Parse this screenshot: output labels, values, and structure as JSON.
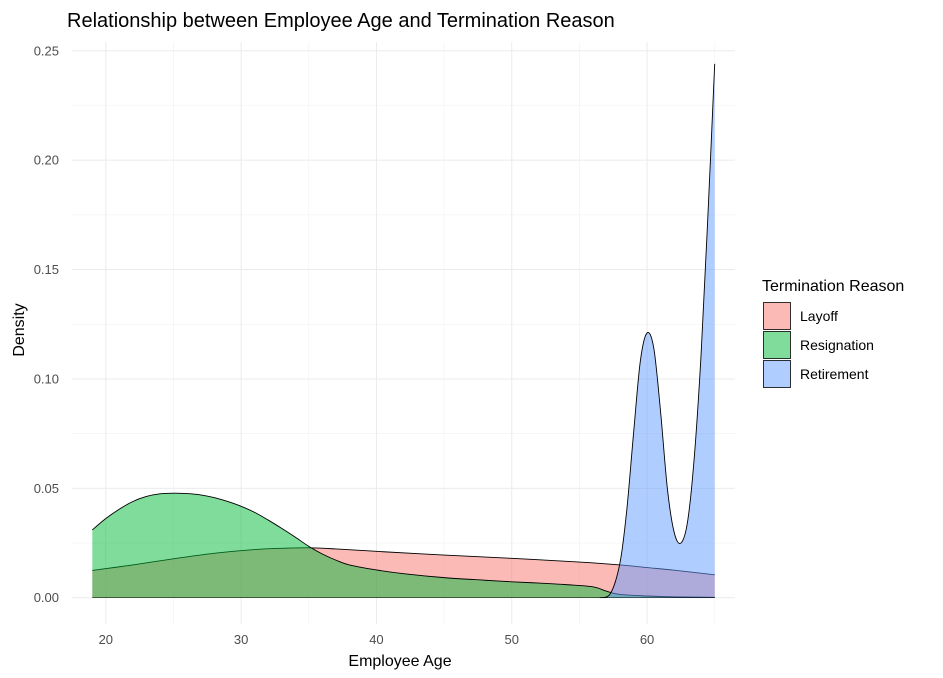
{
  "chart_data": {
    "type": "area",
    "subtype": "density",
    "title": "Relationship between Employee Age and Termination Reason",
    "xlabel": "Employee Age",
    "ylabel": "Density",
    "xlim": [
      17.5,
      66.5
    ],
    "ylim": [
      -0.012,
      0.254
    ],
    "x_ticks": [
      20,
      30,
      40,
      50,
      60
    ],
    "x_tick_labels": [
      "20",
      "30",
      "40",
      "50",
      "60"
    ],
    "y_ticks": [
      0,
      0.05,
      0.1,
      0.15,
      0.2,
      0.25
    ],
    "y_tick_labels": [
      "0.00",
      "0.05",
      "0.10",
      "0.15",
      "0.20",
      "0.25"
    ],
    "grid": true,
    "legend": {
      "title": "Termination Reason",
      "position": "right"
    },
    "fill_opacity": 0.5,
    "series": [
      {
        "name": "Layoff",
        "color": "#F8766D",
        "points": [
          [
            19,
            0.0125
          ],
          [
            22,
            0.015
          ],
          [
            25,
            0.0178
          ],
          [
            28,
            0.0203
          ],
          [
            31,
            0.022
          ],
          [
            33,
            0.0226
          ],
          [
            35,
            0.0228
          ],
          [
            37,
            0.0223
          ],
          [
            40,
            0.0212
          ],
          [
            45,
            0.0195
          ],
          [
            50,
            0.018
          ],
          [
            55,
            0.0163
          ],
          [
            58,
            0.015
          ],
          [
            60,
            0.0138
          ],
          [
            62,
            0.0126
          ],
          [
            65,
            0.0105
          ]
        ]
      },
      {
        "name": "Resignation",
        "color": "#00BA38",
        "points": [
          [
            19,
            0.031
          ],
          [
            20,
            0.0362
          ],
          [
            21,
            0.0405
          ],
          [
            22,
            0.044
          ],
          [
            23,
            0.0463
          ],
          [
            24,
            0.0475
          ],
          [
            25,
            0.0478
          ],
          [
            26,
            0.0476
          ],
          [
            27,
            0.047
          ],
          [
            28,
            0.0458
          ],
          [
            29,
            0.044
          ],
          [
            30,
            0.0418
          ],
          [
            31,
            0.039
          ],
          [
            32,
            0.0355
          ],
          [
            33,
            0.0317
          ],
          [
            34,
            0.0277
          ],
          [
            35,
            0.0235
          ],
          [
            36,
            0.02
          ],
          [
            37,
            0.0172
          ],
          [
            38,
            0.015
          ],
          [
            40,
            0.0127
          ],
          [
            42,
            0.011
          ],
          [
            45,
            0.0092
          ],
          [
            48,
            0.008
          ],
          [
            50,
            0.0073
          ],
          [
            52,
            0.0067
          ],
          [
            54,
            0.006
          ],
          [
            56,
            0.005
          ],
          [
            57,
            0.003
          ],
          [
            58,
            0.0015
          ],
          [
            60,
            0.0008
          ],
          [
            62,
            0.0004
          ],
          [
            65,
            0.0002
          ]
        ]
      },
      {
        "name": "Retirement",
        "color": "#619CFF",
        "points": [
          [
            56.5,
            0.0
          ],
          [
            57.3,
            0.002
          ],
          [
            58.0,
            0.016
          ],
          [
            58.5,
            0.04
          ],
          [
            59.0,
            0.075
          ],
          [
            59.5,
            0.108
          ],
          [
            60.0,
            0.121
          ],
          [
            60.5,
            0.114
          ],
          [
            61.0,
            0.085
          ],
          [
            61.5,
            0.05
          ],
          [
            62.0,
            0.03
          ],
          [
            62.5,
            0.025
          ],
          [
            63.0,
            0.035
          ],
          [
            63.5,
            0.065
          ],
          [
            64.0,
            0.112
          ],
          [
            64.5,
            0.175
          ],
          [
            65.0,
            0.244
          ]
        ]
      }
    ]
  }
}
